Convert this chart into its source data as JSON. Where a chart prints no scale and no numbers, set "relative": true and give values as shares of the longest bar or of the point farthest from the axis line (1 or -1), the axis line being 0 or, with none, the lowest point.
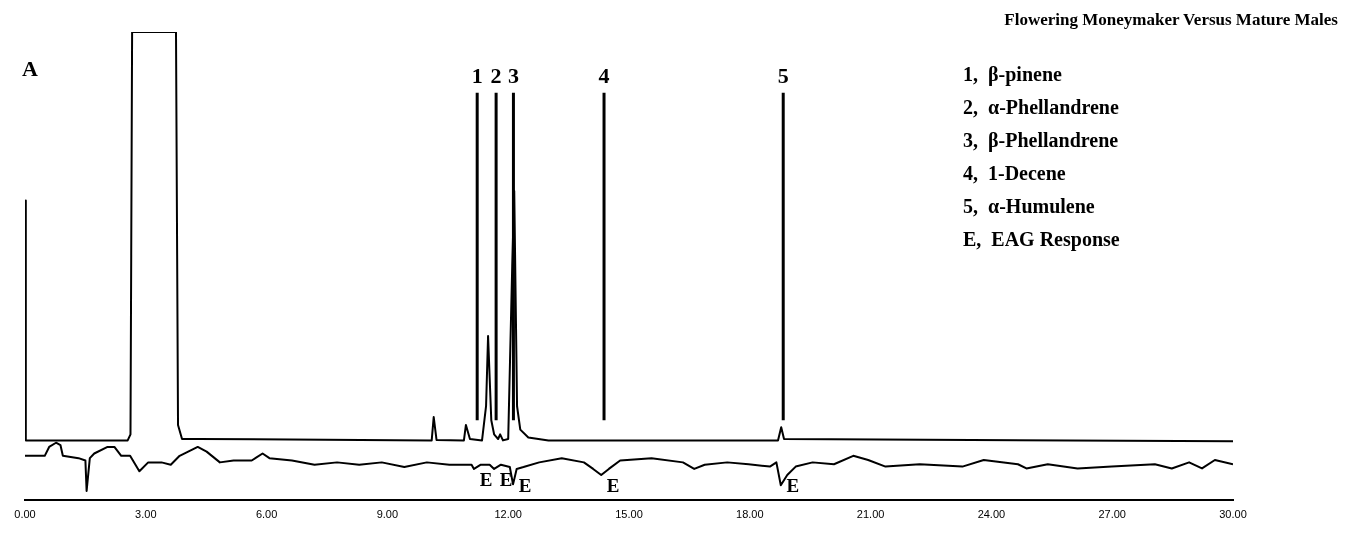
{
  "chart_data": {
    "type": "line",
    "relative": true,
    "title": "Flowering Moneymaker Versus Mature Males",
    "xlim": [
      0,
      30
    ],
    "xticks": [
      {
        "value": 0,
        "label": "0.00"
      },
      {
        "value": 3,
        "label": "3.00"
      },
      {
        "value": 6,
        "label": "6.00"
      },
      {
        "value": 9,
        "label": "9.00"
      },
      {
        "value": 12,
        "label": "12.00"
      },
      {
        "value": 15,
        "label": "15.00"
      },
      {
        "value": 18,
        "label": "18.00"
      },
      {
        "value": 21,
        "label": "21.00"
      },
      {
        "value": 24,
        "label": "24.00"
      },
      {
        "value": 27,
        "label": "27.00"
      },
      {
        "value": 30,
        "label": "30.00"
      }
    ],
    "grid": false,
    "legend": false,
    "marker": "none",
    "line_style": "solid",
    "tick_labels": "x",
    "series": [
      {
        "color": "#000000",
        "x": [
          0,
          0.02,
          2.55,
          2.62,
          2.66,
          3.75,
          3.8,
          3.9,
          4.3,
          10.1,
          10.15,
          10.22,
          10.9,
          10.95,
          11.05,
          11.35,
          11.45,
          11.5,
          11.58,
          11.65,
          11.75,
          11.8,
          11.87,
          12.0,
          12.1,
          12.15,
          12.22,
          12.3,
          12.5,
          13.0,
          18.7,
          18.78,
          18.85,
          30
        ],
        "values": [
          0.64,
          0.127,
          0.127,
          0.14,
          1.0,
          1.0,
          0.16,
          0.13,
          0.13,
          0.127,
          0.177,
          0.128,
          0.127,
          0.16,
          0.13,
          0.127,
          0.2,
          0.35,
          0.17,
          0.14,
          0.13,
          0.14,
          0.127,
          0.13,
          0.5,
          0.66,
          0.2,
          0.15,
          0.133,
          0.127,
          0.127,
          0.155,
          0.13,
          0.125
        ]
      },
      {
        "color": "#000000",
        "x": [
          0,
          0.49,
          0.6,
          0.77,
          0.88,
          0.94,
          1.33,
          1.5,
          1.53,
          1.61,
          1.72,
          2.05,
          2.22,
          2.39,
          2.61,
          2.84,
          3.06,
          3.39,
          3.62,
          3.84,
          4.29,
          4.51,
          4.84,
          5.18,
          5.63,
          5.9,
          6.07,
          6.63,
          7.19,
          7.75,
          8.3,
          8.86,
          9.42,
          9.98,
          10.54,
          11.09,
          11.15,
          11.32,
          11.54,
          11.65,
          11.82,
          12.04,
          12.12,
          12.21,
          12.38,
          12.77,
          13.33,
          13.88,
          14.11,
          14.31,
          14.5,
          14.78,
          15.56,
          16.34,
          16.62,
          16.88,
          17.44,
          17.97,
          18.5,
          18.66,
          18.77,
          18.93,
          19.14,
          19.56,
          20.09,
          20.57,
          20.94,
          21.37,
          22.22,
          23.28,
          23.81,
          24.66,
          24.87,
          25.4,
          26.14,
          26.99,
          28.06,
          28.48,
          28.91,
          29.23,
          29.55,
          30
        ],
        "values": [
          0.094,
          0.094,
          0.113,
          0.122,
          0.117,
          0.094,
          0.089,
          0.084,
          0.019,
          0.089,
          0.099,
          0.113,
          0.113,
          0.094,
          0.094,
          0.061,
          0.08,
          0.08,
          0.075,
          0.094,
          0.113,
          0.103,
          0.08,
          0.084,
          0.084,
          0.099,
          0.089,
          0.084,
          0.075,
          0.08,
          0.075,
          0.08,
          0.07,
          0.08,
          0.075,
          0.075,
          0.066,
          0.075,
          0.075,
          0.066,
          0.075,
          0.07,
          0.033,
          0.066,
          0.07,
          0.08,
          0.089,
          0.08,
          0.066,
          0.053,
          0.066,
          0.084,
          0.089,
          0.08,
          0.066,
          0.075,
          0.08,
          0.076,
          0.071,
          0.08,
          0.031,
          0.053,
          0.071,
          0.08,
          0.076,
          0.094,
          0.085,
          0.071,
          0.076,
          0.071,
          0.085,
          0.076,
          0.067,
          0.076,
          0.067,
          0.071,
          0.076,
          0.067,
          0.08,
          0.067,
          0.085,
          0.076
        ]
      }
    ],
    "ref_lines": [
      {
        "axis": "x",
        "value": 11.23,
        "color": "#000000"
      },
      {
        "axis": "x",
        "value": 11.7,
        "color": "#000000"
      },
      {
        "axis": "x",
        "value": 12.13,
        "color": "#000000"
      },
      {
        "axis": "x",
        "value": 14.38,
        "color": "#000000"
      },
      {
        "axis": "x",
        "value": 18.83,
        "color": "#000000"
      }
    ],
    "annotations": [
      "A",
      "1",
      "2",
      "3",
      "4",
      "5",
      "1,  β-pinene",
      "2,  α-Phellandrene",
      "3,  β-Phellandrene",
      "4,  1-Decene",
      "5,  α-Humulene",
      "E,  EAG Response",
      {
        "text": "E",
        "x": 11.15,
        "y": 0.066
      },
      {
        "text": "E",
        "x": 11.65,
        "y": 0.066
      },
      {
        "text": "E",
        "x": 12.12,
        "y": 0.033
      },
      {
        "text": "E",
        "x": 14.31,
        "y": 0.053
      },
      {
        "text": "E",
        "x": 18.77,
        "y": 0.031
      }
    ]
  }
}
